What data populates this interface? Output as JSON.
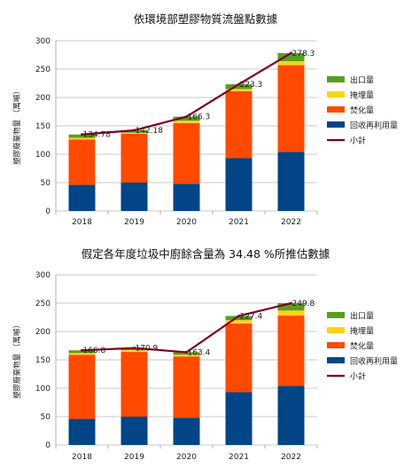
{
  "colors": {
    "export": "#5a9e1e",
    "landfill": "#ffd21a",
    "incineration": "#ff4a00",
    "recycling": "#004586",
    "total": "#7e0021"
  },
  "chart_data": [
    {
      "type": "bar",
      "title": "依環境部塑膠物質流盤點數據",
      "ylabel": "塑膠廢棄物量 （萬噸）",
      "ylim": [
        0,
        300
      ],
      "yticks": [
        0,
        50,
        100,
        150,
        200,
        250,
        300
      ],
      "categories": [
        "2018",
        "2019",
        "2020",
        "2021",
        "2022"
      ],
      "series": [
        {
          "name": "回收再利用量",
          "key": "recycling",
          "values": [
            46,
            50,
            48,
            93,
            104
          ]
        },
        {
          "name": "焚化量",
          "key": "incineration",
          "values": [
            80,
            86,
            107,
            118,
            153
          ]
        },
        {
          "name": "掩埋量",
          "key": "landfill",
          "values": [
            3,
            2,
            4,
            4,
            7
          ]
        },
        {
          "name": "出口量",
          "key": "export",
          "values": [
            5.78,
            4.18,
            7.3,
            8.3,
            14.3
          ]
        }
      ],
      "line": {
        "name": "小計",
        "key": "total",
        "values": [
          134.78,
          142.18,
          166.3,
          223.3,
          278.3
        ],
        "labels": [
          "134.78",
          "142.18",
          "166.3",
          "223.3",
          "278.3"
        ]
      },
      "legend_position": "right"
    },
    {
      "type": "bar",
      "title": "假定各年度垃圾中廚餘含量為 34.48 %所推估數據",
      "ylabel": "塑膠廢棄物量 （萬噸）",
      "ylim": [
        0,
        300
      ],
      "yticks": [
        0,
        50,
        100,
        150,
        200,
        250,
        300
      ],
      "categories": [
        "2018",
        "2019",
        "2020",
        "2021",
        "2022"
      ],
      "series": [
        {
          "name": "回收再利用量",
          "key": "recycling",
          "values": [
            46,
            50,
            48,
            93,
            104
          ]
        },
        {
          "name": "焚化量",
          "key": "incineration",
          "values": [
            113,
            114,
            108,
            121,
            124
          ]
        },
        {
          "name": "掩埋量",
          "key": "landfill",
          "values": [
            3,
            3,
            3,
            6,
            9
          ]
        },
        {
          "name": "出口量",
          "key": "export",
          "values": [
            4.8,
            3.9,
            4.4,
            7.4,
            12.8
          ]
        }
      ],
      "line": {
        "name": "小計",
        "key": "total",
        "values": [
          166.8,
          170.9,
          163.4,
          227.4,
          249.8
        ],
        "labels": [
          "166.8",
          "170.9",
          "163.4",
          "227.4",
          "249.8"
        ]
      },
      "legend_position": "right"
    }
  ]
}
